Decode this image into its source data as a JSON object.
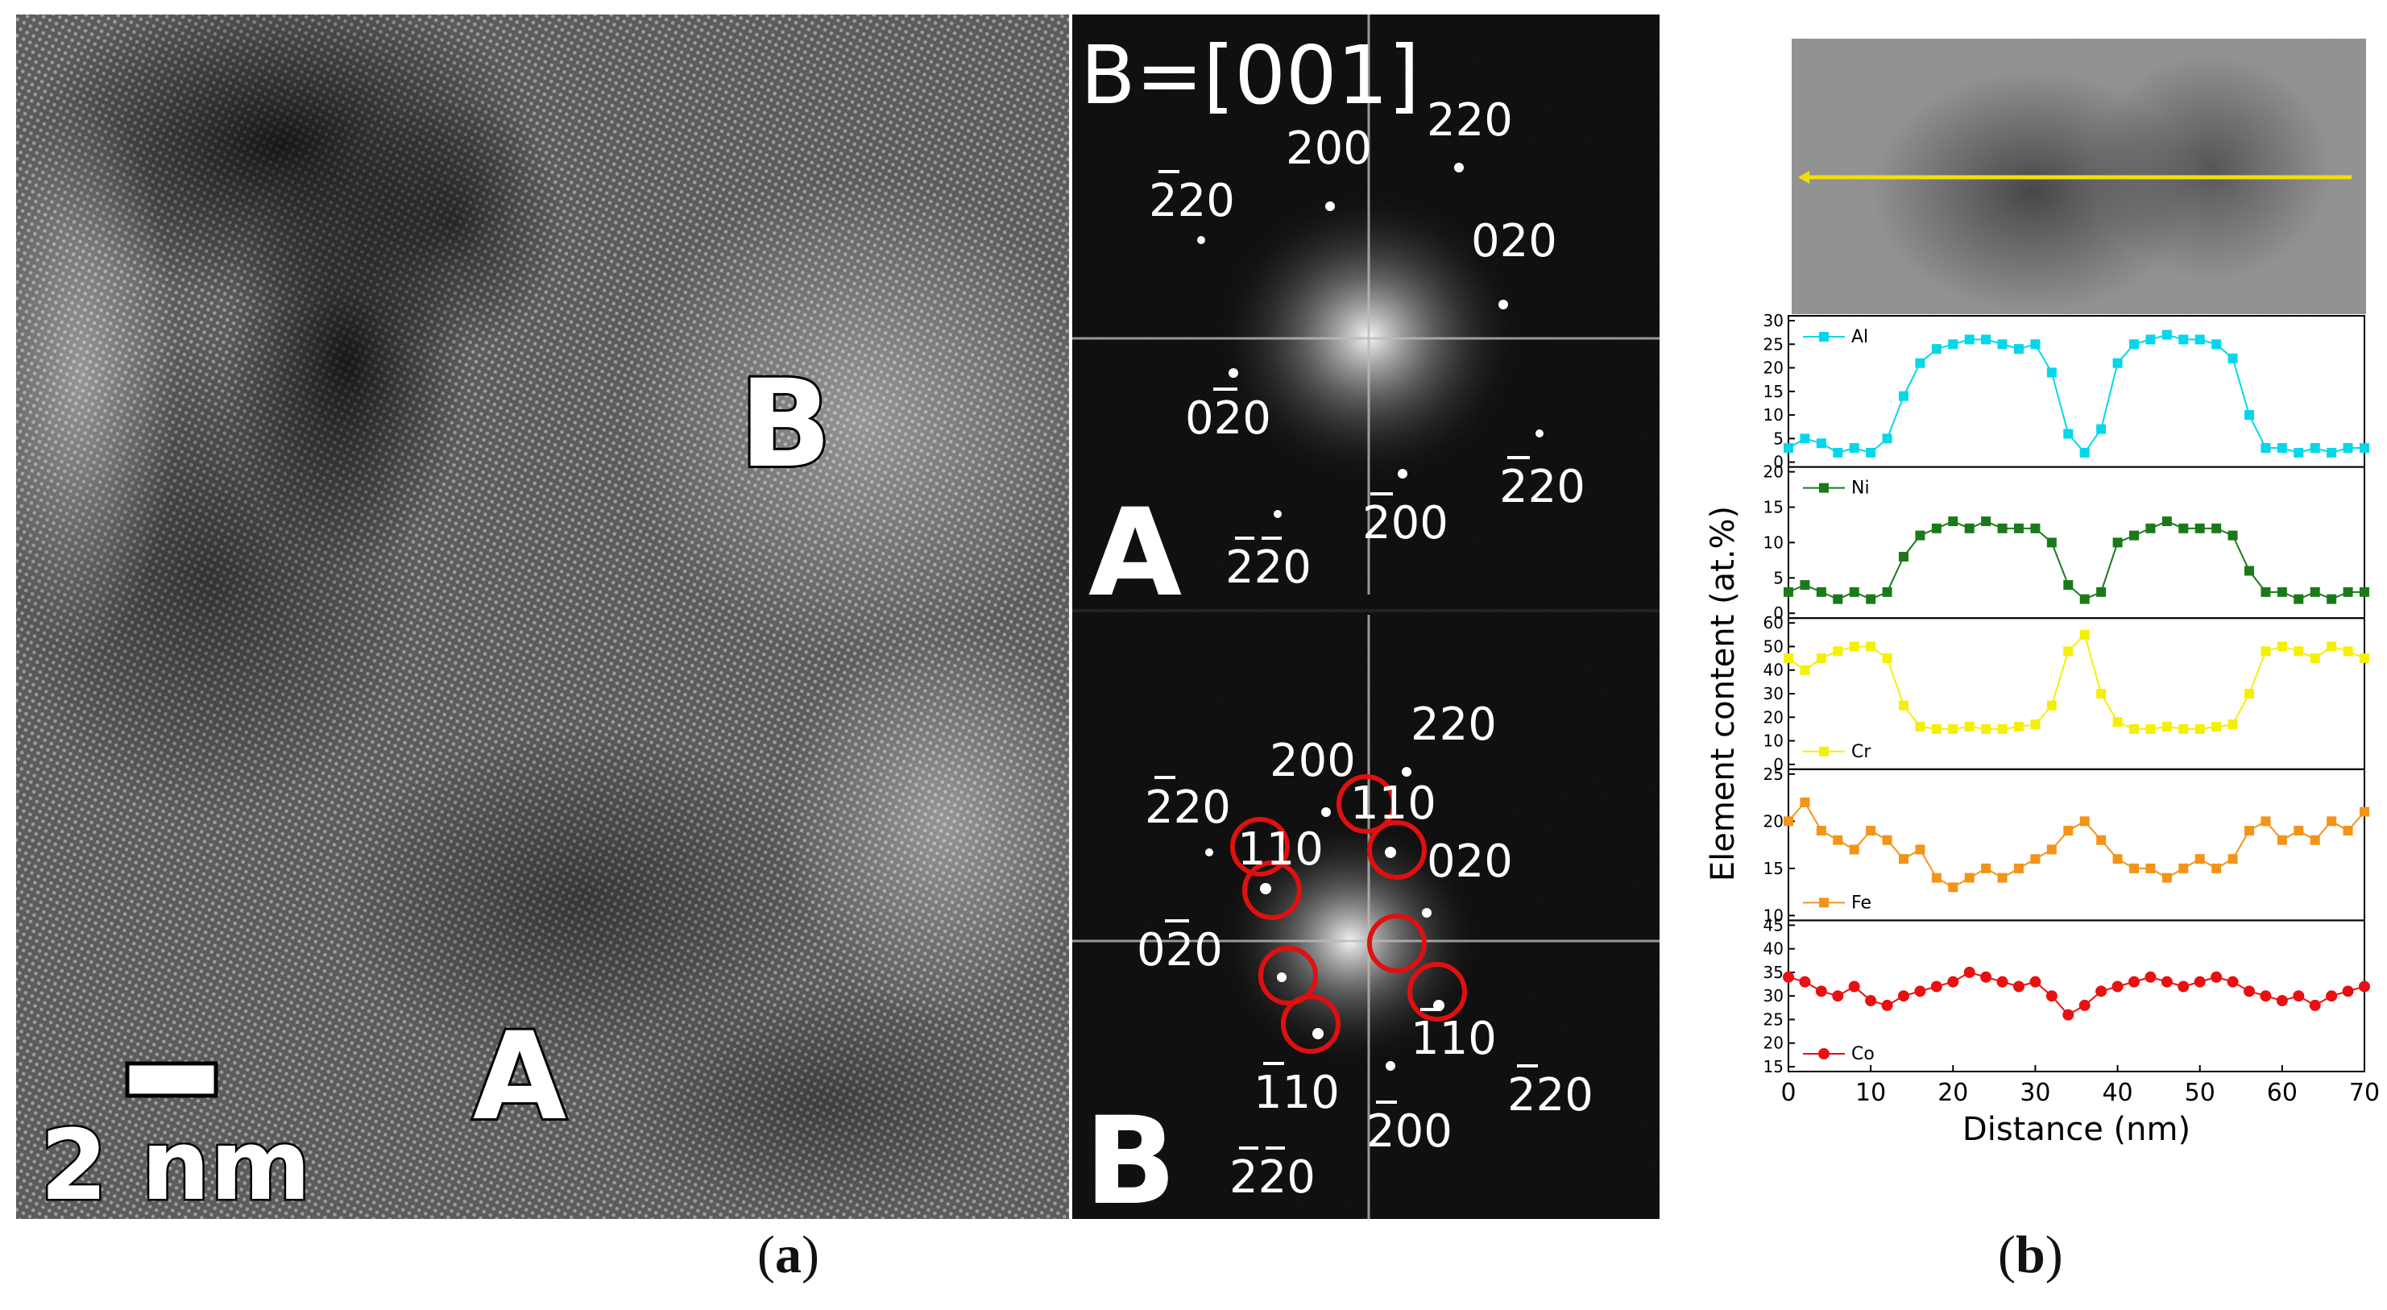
{
  "panel_a": {
    "caption": "a",
    "hrtem": {
      "region_labels": [
        "B",
        "A"
      ],
      "scale_bar": "2 nm"
    },
    "fft": {
      "zone_axis": "B=[001]",
      "top_region": "A",
      "bottom_region": "B",
      "top_spots": [
        {
          "text": "220",
          "bars": ""
        },
        {
          "text": "200",
          "bars": ""
        },
        {
          "text": "220",
          "bars": "1"
        },
        {
          "text": "020",
          "bars": ""
        },
        {
          "text": "020",
          "bars": "1"
        },
        {
          "text": "220",
          "bars": "0"
        },
        {
          "text": "200",
          "bars": "0"
        },
        {
          "text": "220",
          "bars": "01"
        }
      ],
      "bottom_spots": [
        {
          "text": "220",
          "bars": ""
        },
        {
          "text": "200",
          "bars": ""
        },
        {
          "text": "220",
          "bars": "1"
        },
        {
          "text": "110",
          "bars": ""
        },
        {
          "text": "110",
          "bars": ""
        },
        {
          "text": "020",
          "bars": ""
        },
        {
          "text": "020",
          "bars": "1"
        },
        {
          "text": "110",
          "bars": "0"
        },
        {
          "text": "110",
          "bars": "0"
        },
        {
          "text": "220",
          "bars": "0"
        },
        {
          "text": "200",
          "bars": "0"
        },
        {
          "text": "220",
          "bars": "01"
        }
      ]
    }
  },
  "panel_b": {
    "caption": "b",
    "chart_data": {
      "type": "line",
      "xlabel": "Distance (nm)",
      "ylabel": "Element content (at.%)",
      "xlim": [
        0,
        70
      ],
      "xticks": [
        0,
        10,
        20,
        30,
        40,
        50,
        60,
        70
      ],
      "marker_note": "scatter-line with markers",
      "series": [
        {
          "name": "Al",
          "color": "#00d8ea",
          "marker": "square",
          "ylim": [
            0,
            30
          ],
          "yticks": [
            0,
            5,
            10,
            15,
            20,
            25,
            30
          ],
          "x": [
            0,
            2,
            4,
            6,
            8,
            10,
            12,
            14,
            16,
            18,
            20,
            22,
            24,
            26,
            28,
            30,
            32,
            34,
            36,
            38,
            40,
            42,
            44,
            46,
            48,
            50,
            52,
            54,
            56,
            58,
            60,
            62,
            64,
            66,
            68,
            70
          ],
          "values": [
            3,
            5,
            4,
            2,
            3,
            2,
            5,
            14,
            21,
            24,
            25,
            26,
            26,
            25,
            24,
            25,
            19,
            6,
            2,
            7,
            21,
            25,
            26,
            27,
            26,
            26,
            25,
            22,
            10,
            3,
            3,
            2,
            3,
            2,
            3,
            3
          ]
        },
        {
          "name": "Ni",
          "color": "#1a7a1a",
          "marker": "square",
          "ylim": [
            0,
            20
          ],
          "yticks": [
            0,
            5,
            10,
            15,
            20
          ],
          "x": [
            0,
            2,
            4,
            6,
            8,
            10,
            12,
            14,
            16,
            18,
            20,
            22,
            24,
            26,
            28,
            30,
            32,
            34,
            36,
            38,
            40,
            42,
            44,
            46,
            48,
            50,
            52,
            54,
            56,
            58,
            60,
            62,
            64,
            66,
            68,
            70
          ],
          "values": [
            3,
            4,
            3,
            2,
            3,
            2,
            3,
            8,
            11,
            12,
            13,
            12,
            13,
            12,
            12,
            12,
            10,
            4,
            2,
            3,
            10,
            11,
            12,
            13,
            12,
            12,
            12,
            11,
            6,
            3,
            3,
            2,
            3,
            2,
            3,
            3
          ]
        },
        {
          "name": "Cr",
          "color": "#f4f000",
          "marker": "square",
          "ylim": [
            0,
            60
          ],
          "yticks": [
            0,
            10,
            20,
            30,
            40,
            50,
            60
          ],
          "x": [
            0,
            2,
            4,
            6,
            8,
            10,
            12,
            14,
            16,
            18,
            20,
            22,
            24,
            26,
            28,
            30,
            32,
            34,
            36,
            38,
            40,
            42,
            44,
            46,
            48,
            50,
            52,
            54,
            56,
            58,
            60,
            62,
            64,
            66,
            68,
            70
          ],
          "values": [
            45,
            40,
            45,
            48,
            50,
            50,
            45,
            25,
            16,
            15,
            15,
            16,
            15,
            15,
            16,
            17,
            25,
            48,
            55,
            30,
            18,
            15,
            15,
            16,
            15,
            15,
            16,
            17,
            30,
            48,
            50,
            48,
            45,
            50,
            48,
            45
          ]
        },
        {
          "name": "Fe",
          "color": "#f39418",
          "marker": "square",
          "ylim": [
            10,
            25
          ],
          "yticks": [
            10,
            15,
            20,
            25
          ],
          "x": [
            0,
            2,
            4,
            6,
            8,
            10,
            12,
            14,
            16,
            18,
            20,
            22,
            24,
            26,
            28,
            30,
            32,
            34,
            36,
            38,
            40,
            42,
            44,
            46,
            48,
            50,
            52,
            54,
            56,
            58,
            60,
            62,
            64,
            66,
            68,
            70
          ],
          "values": [
            20,
            22,
            19,
            18,
            17,
            19,
            18,
            16,
            17,
            14,
            13,
            14,
            15,
            14,
            15,
            16,
            17,
            19,
            20,
            18,
            16,
            15,
            15,
            14,
            15,
            16,
            15,
            16,
            19,
            20,
            18,
            19,
            18,
            20,
            19,
            21
          ]
        },
        {
          "name": "Co",
          "color": "#e81010",
          "marker": "circle",
          "ylim": [
            15,
            45
          ],
          "yticks": [
            15,
            20,
            25,
            30,
            35,
            40,
            45
          ],
          "x": [
            0,
            2,
            4,
            6,
            8,
            10,
            12,
            14,
            16,
            18,
            20,
            22,
            24,
            26,
            28,
            30,
            32,
            34,
            36,
            38,
            40,
            42,
            44,
            46,
            48,
            50,
            52,
            54,
            56,
            58,
            60,
            62,
            64,
            66,
            68,
            70
          ],
          "values": [
            34,
            33,
            31,
            30,
            32,
            29,
            28,
            30,
            31,
            32,
            33,
            35,
            34,
            33,
            32,
            33,
            30,
            26,
            28,
            31,
            32,
            33,
            34,
            33,
            32,
            33,
            34,
            33,
            31,
            30,
            29,
            30,
            28,
            30,
            31,
            32
          ]
        }
      ]
    }
  }
}
